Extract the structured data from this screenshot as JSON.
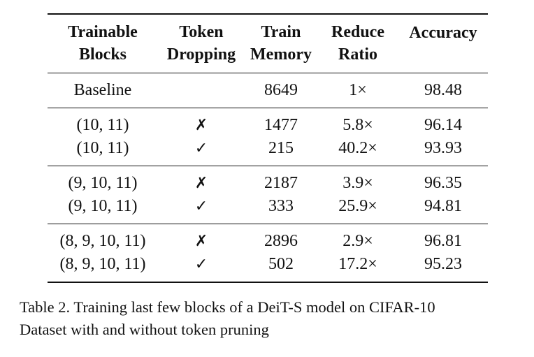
{
  "table": {
    "headers": [
      {
        "line1": "Trainable",
        "line2": "Blocks"
      },
      {
        "line1": "Token",
        "line2": "Dropping"
      },
      {
        "line1": "Train",
        "line2": "Memory"
      },
      {
        "line1": "Reduce",
        "line2": "Ratio"
      },
      {
        "line1": "Accuracy",
        "line2": ""
      }
    ],
    "baseline": {
      "blocks": "Baseline",
      "dropping": "",
      "memory": "8649",
      "ratio": "1×",
      "accuracy": "98.48"
    },
    "groups": [
      {
        "rows": [
          {
            "blocks": "(10, 11)",
            "dropping": "✗",
            "memory": "1477",
            "ratio": "5.8×",
            "accuracy": "96.14"
          },
          {
            "blocks": "(10, 11)",
            "dropping": "✓",
            "memory": "215",
            "ratio": "40.2×",
            "accuracy": "93.93"
          }
        ]
      },
      {
        "rows": [
          {
            "blocks": "(9, 10, 11)",
            "dropping": "✗",
            "memory": "2187",
            "ratio": "3.9×",
            "accuracy": "96.35"
          },
          {
            "blocks": "(9, 10, 11)",
            "dropping": "✓",
            "memory": "333",
            "ratio": "25.9×",
            "accuracy": "94.81"
          }
        ]
      },
      {
        "rows": [
          {
            "blocks": "(8, 9, 10, 11)",
            "dropping": "✗",
            "memory": "2896",
            "ratio": "2.9×",
            "accuracy": "96.81"
          },
          {
            "blocks": "(8, 9, 10, 11)",
            "dropping": "✓",
            "memory": "502",
            "ratio": "17.2×",
            "accuracy": "95.23"
          }
        ]
      }
    ]
  },
  "caption": {
    "line1": "Table 2. Training last few blocks of a DeiT-S model on CIFAR-10",
    "line2": "Dataset with and without token pruning"
  }
}
